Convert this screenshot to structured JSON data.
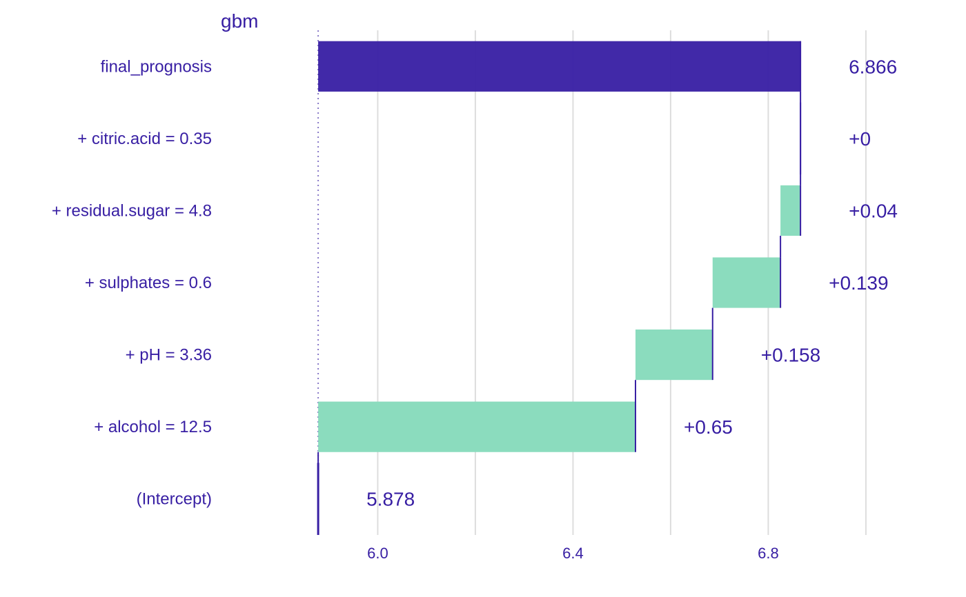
{
  "chart_data": {
    "type": "bar",
    "subtype": "waterfall break-down",
    "title": "gbm",
    "xlabel": "",
    "ylabel": "",
    "xlim": [
      5.81,
      7.01
    ],
    "xticks": [
      6.0,
      6.4,
      6.8
    ],
    "xtick_labels": [
      "6.0",
      "6.4",
      "6.8"
    ],
    "baseline": 5.878,
    "grid": true,
    "rows": [
      {
        "label": "final_prognosis",
        "start": 5.878,
        "end": 6.866,
        "value_label": "6.866",
        "kind": "prediction"
      },
      {
        "label": "+ citric.acid = 0.35",
        "start": 6.866,
        "end": 6.866,
        "value_label": "+0",
        "kind": "positive"
      },
      {
        "label": "+ residual.sugar = 4.8",
        "start": 6.825,
        "end": 6.866,
        "value_label": "+0.04",
        "kind": "positive"
      },
      {
        "label": "+ sulphates = 0.6",
        "start": 6.686,
        "end": 6.825,
        "value_label": "+0.139",
        "kind": "positive"
      },
      {
        "label": "+ pH = 3.36",
        "start": 6.528,
        "end": 6.686,
        "value_label": "+0.158",
        "kind": "positive"
      },
      {
        "label": "+ alcohol = 12.5",
        "start": 5.878,
        "end": 6.528,
        "value_label": "+0.65",
        "kind": "positive"
      },
      {
        "label": "(Intercept)",
        "start": 5.878,
        "end": 5.878,
        "value_label": "5.878",
        "kind": "intercept"
      }
    ],
    "colors": {
      "text": "#371ea3",
      "prediction": "#371ea3",
      "positive": "#8bdcbe",
      "negative": "#f05a71",
      "grid": "#dddddd",
      "connector": "#371ea3"
    }
  }
}
